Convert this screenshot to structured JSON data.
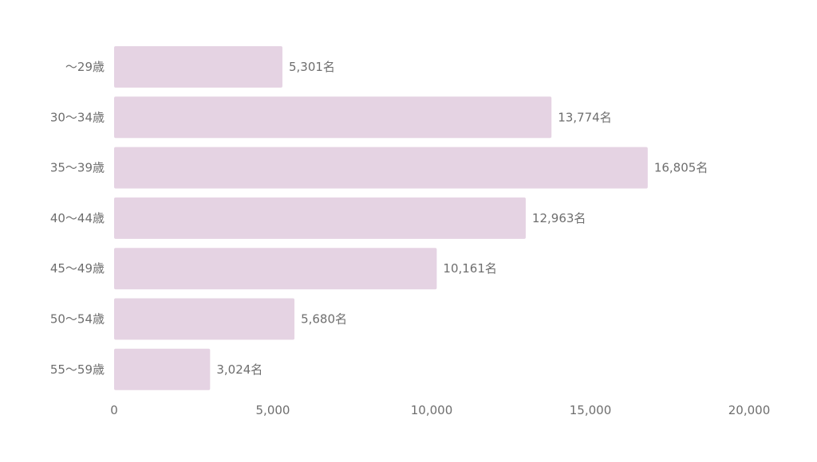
{
  "chart_data": {
    "type": "bar",
    "orientation": "horizontal",
    "categories": [
      "〜29歳",
      "30〜34歳",
      "35〜39歳",
      "40〜44歳",
      "45〜49歳",
      "50〜54歳",
      "55〜59歳"
    ],
    "values": [
      5301,
      13774,
      16805,
      12963,
      10161,
      5680,
      3024
    ],
    "value_labels": [
      "5,301名",
      "13,774名",
      "16,805名",
      "12,963名",
      "10,161名",
      "5,680名",
      "3,024名"
    ],
    "xlim": [
      0,
      20000
    ],
    "x_ticks": [
      0,
      5000,
      10000,
      15000,
      20000
    ],
    "x_tick_labels": [
      "0",
      "5,000",
      "10,000",
      "15,000",
      "20,000"
    ],
    "title": "",
    "xlabel": "",
    "ylabel": "",
    "grid": false,
    "legend": "none",
    "bar_color": "#e5d3e3",
    "text_color": "#6e6e6e"
  }
}
